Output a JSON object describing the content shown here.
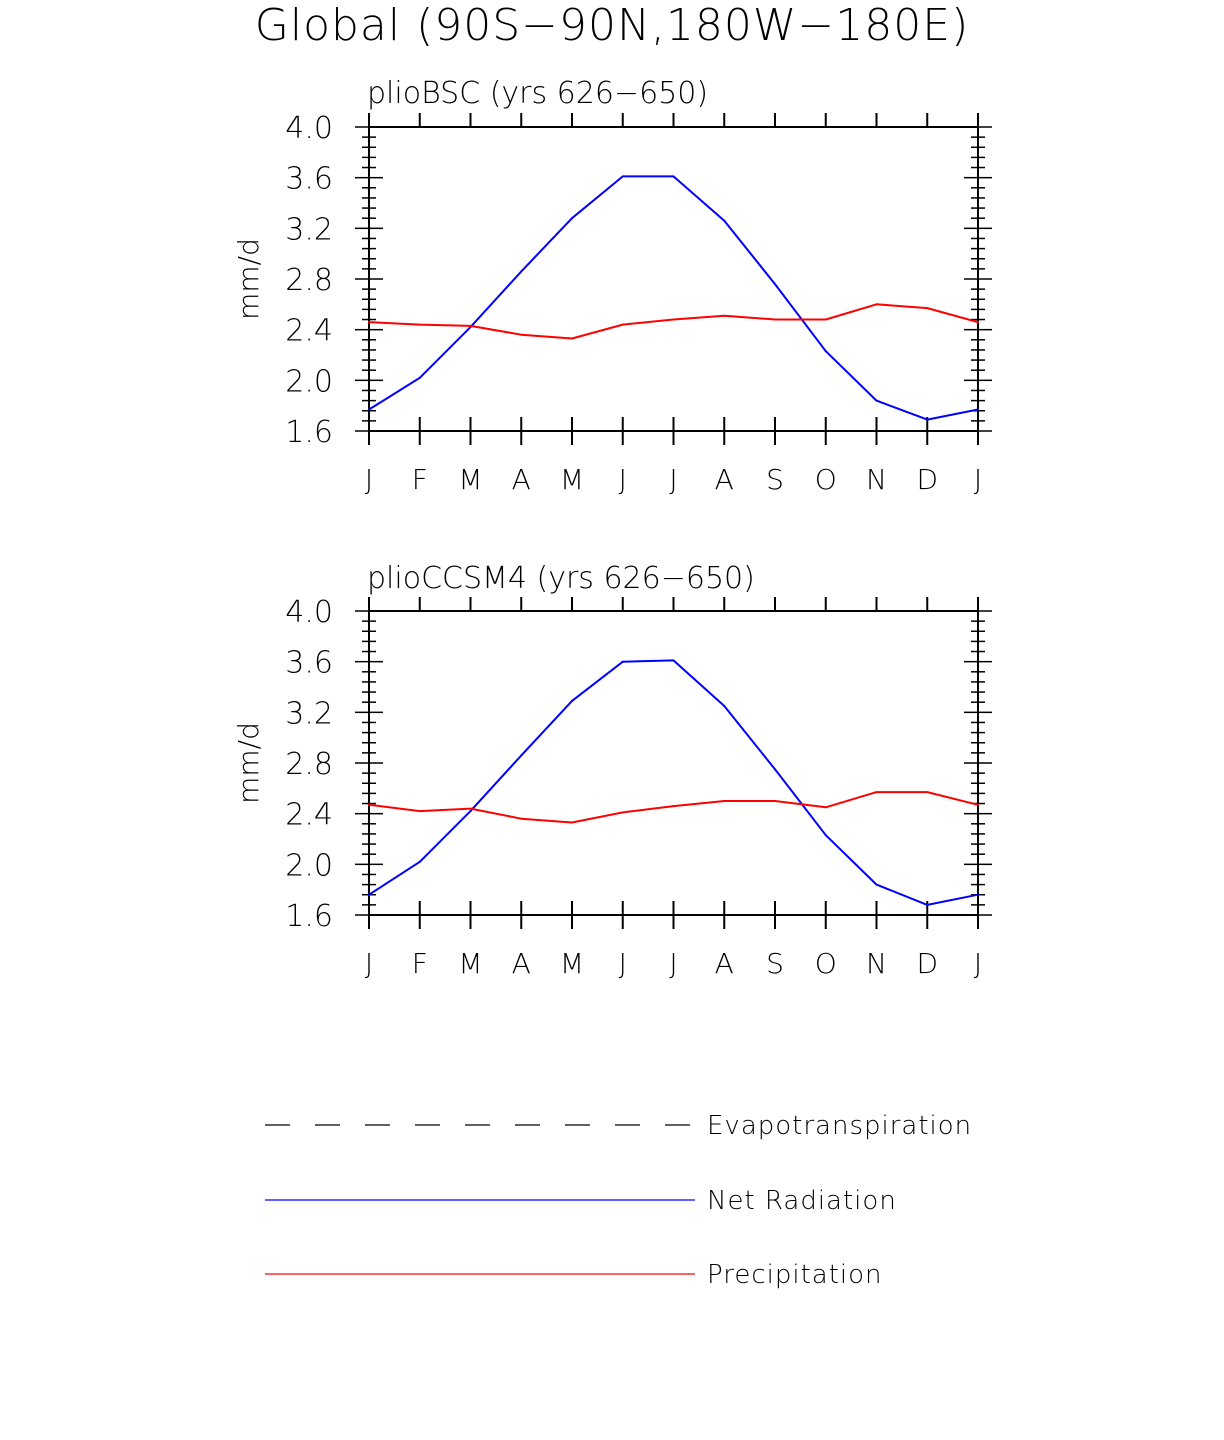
{
  "chart_data": [
    {
      "type": "line",
      "title": "plioBSC (yrs 626−650)",
      "ylabel": "mm/d",
      "xlabel": "",
      "ylim": [
        1.6,
        4.0
      ],
      "yticks": [
        "4.0",
        "3.6",
        "3.2",
        "2.8",
        "2.4",
        "2.0",
        "1.6"
      ],
      "categories": [
        "J",
        "F",
        "M",
        "A",
        "M",
        "J",
        "J",
        "A",
        "S",
        "O",
        "N",
        "D",
        "J"
      ],
      "series": [
        {
          "name": "Net Radiation",
          "color": "#0000ff",
          "values": [
            1.77,
            2.02,
            2.42,
            2.86,
            3.28,
            3.61,
            3.61,
            3.26,
            2.76,
            2.23,
            1.84,
            1.69,
            1.77
          ]
        },
        {
          "name": "Precipitation",
          "color": "#ff0000",
          "values": [
            2.46,
            2.44,
            2.43,
            2.36,
            2.33,
            2.44,
            2.48,
            2.51,
            2.48,
            2.48,
            2.6,
            2.57,
            2.46
          ]
        }
      ]
    },
    {
      "type": "line",
      "title": "plioCCSM4 (yrs 626−650)",
      "ylabel": "mm/d",
      "xlabel": "",
      "ylim": [
        1.6,
        4.0
      ],
      "yticks": [
        "4.0",
        "3.6",
        "3.2",
        "2.8",
        "2.4",
        "2.0",
        "1.6"
      ],
      "categories": [
        "J",
        "F",
        "M",
        "A",
        "M",
        "J",
        "J",
        "A",
        "S",
        "O",
        "N",
        "D",
        "J"
      ],
      "series": [
        {
          "name": "Net Radiation",
          "color": "#0000ff",
          "values": [
            1.76,
            2.02,
            2.42,
            2.86,
            3.29,
            3.6,
            3.61,
            3.25,
            2.75,
            2.23,
            1.84,
            1.68,
            1.76
          ]
        },
        {
          "name": "Precipitation",
          "color": "#ff0000",
          "values": [
            2.47,
            2.42,
            2.44,
            2.36,
            2.33,
            2.41,
            2.46,
            2.5,
            2.5,
            2.45,
            2.57,
            2.57,
            2.47
          ]
        }
      ]
    }
  ],
  "figure": {
    "title": "Global (90S−90N,180W−180E)"
  },
  "legend": {
    "items": [
      {
        "label": "Evapotranspiration",
        "color": "#000000",
        "style": "dashed"
      },
      {
        "label": "Net Radiation",
        "color": "#0000ff",
        "style": "solid"
      },
      {
        "label": "Precipitation",
        "color": "#ff0000",
        "style": "solid"
      }
    ]
  }
}
